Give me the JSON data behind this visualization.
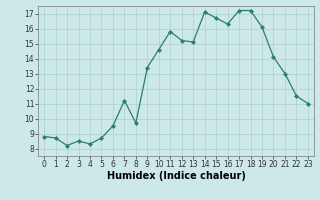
{
  "xlabel": "Humidex (Indice chaleur)",
  "x": [
    0,
    1,
    2,
    3,
    4,
    5,
    6,
    7,
    8,
    9,
    10,
    11,
    12,
    13,
    14,
    15,
    16,
    17,
    18,
    19,
    20,
    21,
    22,
    23
  ],
  "y": [
    8.8,
    8.7,
    8.2,
    8.5,
    8.3,
    8.7,
    9.5,
    11.2,
    9.7,
    13.4,
    14.6,
    15.8,
    15.2,
    15.1,
    17.1,
    16.7,
    16.3,
    17.2,
    17.2,
    16.1,
    14.1,
    13.0,
    11.5,
    11.0
  ],
  "line_color": "#2e7d6e",
  "bg_color": "#cce8e8",
  "grid_color": "#aacfcf",
  "ylim": [
    7.5,
    17.5
  ],
  "yticks": [
    8,
    9,
    10,
    11,
    12,
    13,
    14,
    15,
    16,
    17
  ],
  "xticks": [
    0,
    1,
    2,
    3,
    4,
    5,
    6,
    7,
    8,
    9,
    10,
    11,
    12,
    13,
    14,
    15,
    16,
    17,
    18,
    19,
    20,
    21,
    22,
    23
  ],
  "tick_fontsize": 5.5,
  "xlabel_fontsize": 7.0
}
